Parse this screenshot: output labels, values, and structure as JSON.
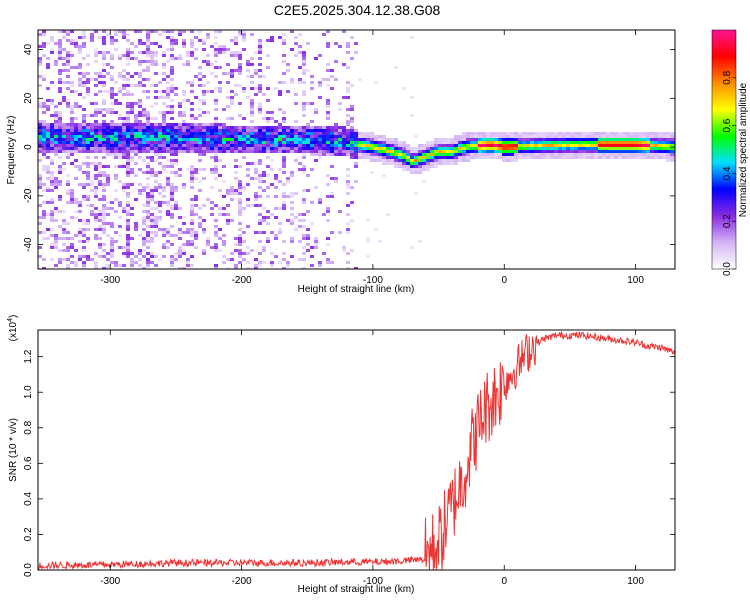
{
  "chart_data": [
    {
      "type": "heatmap",
      "title": "C2E5.2025.304.12.38.G08",
      "xlabel": "Height of straight line (km)",
      "ylabel": "Frequency (Hz)",
      "xlim": [
        -355,
        130
      ],
      "ylim": [
        -50,
        48
      ],
      "xticks": [
        -300,
        -200,
        -100,
        0,
        100
      ],
      "yticks": [
        -40,
        -20,
        0,
        20,
        40
      ],
      "colorbar": {
        "label": "Normalized spectral amplitude",
        "range": [
          0.0,
          1.0
        ],
        "ticks": [
          "0.0",
          "0.2",
          "0.4",
          "0.6",
          "0.8"
        ],
        "colors": [
          "#ffffff",
          "#d3b3f5",
          "#8a2be2",
          "#0000ff",
          "#00e0ff",
          "#00ff00",
          "#ffff00",
          "#ff8c00",
          "#ff0000",
          "#ff1493"
        ]
      },
      "ridge": {
        "description_points_km_hz": [
          [
            -355,
            4
          ],
          [
            -300,
            4
          ],
          [
            -250,
            4
          ],
          [
            -200,
            3
          ],
          [
            -150,
            3
          ],
          [
            -120,
            2
          ],
          [
            -100,
            0
          ],
          [
            -85,
            -2
          ],
          [
            -75,
            -4
          ],
          [
            -70,
            -6
          ],
          [
            -60,
            -4
          ],
          [
            -50,
            -2
          ],
          [
            -40,
            -2
          ],
          [
            -30,
            0
          ],
          [
            -10,
            1
          ],
          [
            0,
            0
          ],
          [
            50,
            1
          ],
          [
            100,
            1
          ],
          [
            130,
            0
          ]
        ],
        "peak_amplitude_regions_km": [
          [
            -20,
            10
          ],
          [
            70,
            110
          ]
        ]
      }
    },
    {
      "type": "line",
      "xlabel": "Height of straight line (km)",
      "ylabel": "SNR (10 * v/v)",
      "y_multiplier_label": "(x10",
      "y_multiplier_exp": "4",
      "xlim": [
        -355,
        130
      ],
      "ylim": [
        0,
        1.35
      ],
      "xticks": [
        -300,
        -200,
        -100,
        0,
        100
      ],
      "yticks": [
        "0.0",
        "0.2",
        "0.4",
        "0.6",
        "0.8",
        "1.0",
        "1.2"
      ],
      "series": [
        {
          "name": "SNR",
          "color": "#ee3333",
          "x": [
            -355,
            -300,
            -250,
            -200,
            -150,
            -120,
            -100,
            -80,
            -60,
            -50,
            -45,
            -40,
            -35,
            -30,
            -25,
            -20,
            -15,
            -10,
            -5,
            0,
            5,
            10,
            15,
            20,
            30,
            40,
            50,
            60,
            70,
            80,
            90,
            100,
            110,
            120,
            130
          ],
          "y": [
            0.01,
            0.02,
            0.04,
            0.04,
            0.04,
            0.05,
            0.05,
            0.06,
            0.08,
            0.15,
            0.25,
            0.35,
            0.45,
            0.55,
            0.7,
            0.8,
            0.9,
            0.95,
            1.0,
            1.05,
            1.1,
            1.15,
            1.2,
            1.25,
            1.3,
            1.32,
            1.32,
            1.32,
            1.31,
            1.3,
            1.29,
            1.28,
            1.26,
            1.25,
            1.22
          ]
        }
      ]
    }
  ]
}
